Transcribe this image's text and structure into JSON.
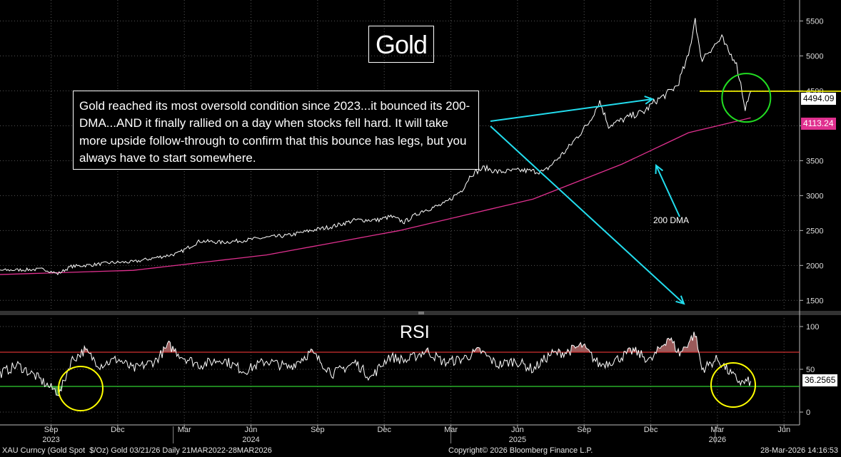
{
  "chart_data": [
    {
      "type": "line",
      "title": "Gold",
      "ylim": [
        1350,
        5800
      ],
      "y_ticks": [
        1500,
        2000,
        2500,
        3000,
        3500,
        4000,
        4500,
        5000,
        5500
      ],
      "x_range": [
        "Jul 2023",
        "Jun 2026"
      ],
      "series": [
        {
          "name": "XAU Curncy (Gold Spot $/Oz)",
          "color": "#ffffff",
          "anchors": [
            [
              0,
              1930
            ],
            [
              2,
              1945
            ],
            [
              2.6,
              1880
            ],
            [
              3.2,
              1985
            ],
            [
              4.2,
              2010
            ],
            [
              5,
              2040
            ],
            [
              6,
              2050
            ],
            [
              8,
              2170
            ],
            [
              9,
              2350
            ],
            [
              10,
              2330
            ],
            [
              11,
              2360
            ],
            [
              12,
              2400
            ],
            [
              13,
              2430
            ],
            [
              14,
              2500
            ],
            [
              15,
              2560
            ],
            [
              16,
              2650
            ],
            [
              17,
              2650
            ],
            [
              17.6,
              2700
            ],
            [
              18.2,
              2620
            ],
            [
              19,
              2780
            ],
            [
              20,
              2880
            ],
            [
              20.8,
              3080
            ],
            [
              21.2,
              3300
            ],
            [
              21.8,
              3400
            ],
            [
              22.4,
              3340
            ],
            [
              23.5,
              3360
            ],
            [
              24.5,
              3340
            ],
            [
              25.5,
              3650
            ],
            [
              26.5,
              4040
            ],
            [
              27,
              4350
            ],
            [
              27.4,
              4000
            ],
            [
              28,
              4080
            ],
            [
              28.5,
              4150
            ],
            [
              29,
              4200
            ],
            [
              29.5,
              4350
            ],
            [
              30,
              4450
            ],
            [
              30.5,
              4580
            ],
            [
              31,
              5000
            ],
            [
              31.3,
              5550
            ],
            [
              31.55,
              4950
            ],
            [
              32,
              5100
            ],
            [
              32.5,
              5250
            ],
            [
              32.8,
              5050
            ],
            [
              33.1,
              4950
            ],
            [
              33.35,
              4600
            ],
            [
              33.55,
              4250
            ],
            [
              33.8,
              4494
            ]
          ],
          "last_value": "4494.09"
        },
        {
          "name": "200 DMA",
          "color": "#e0308f",
          "anchors": [
            [
              0,
              1870
            ],
            [
              6,
              1930
            ],
            [
              12,
              2150
            ],
            [
              18,
              2500
            ],
            [
              24,
              2950
            ],
            [
              28,
              3450
            ],
            [
              31,
              3900
            ],
            [
              33.8,
              4113
            ]
          ],
          "last_value": "4113.24"
        }
      ],
      "horizontal_line": {
        "value": 4494.09,
        "color": "#ffff00"
      },
      "annotations": {
        "note": "Gold reached its most oversold condition since 2023...it bounced its 200-DMA...AND it finally rallied on a day when stocks fell hard. It will take more upside follow-through to confirm that this bounce has legs, but you always have to start somewhere.",
        "dma_label": "200 DMA"
      }
    },
    {
      "type": "line",
      "title": "RSI",
      "ylim": [
        -10,
        110
      ],
      "y_ticks": [
        0,
        50,
        100
      ],
      "overbought": 70,
      "oversold": 30,
      "series": [
        {
          "name": "RSI",
          "color": "#ffffff",
          "anchors": [
            [
              0,
              45
            ],
            [
              0.8,
              55
            ],
            [
              1.6,
              42
            ],
            [
              2.3,
              28
            ],
            [
              2.7,
              22
            ],
            [
              3.2,
              60
            ],
            [
              3.8,
              72
            ],
            [
              4.5,
              55
            ],
            [
              5.3,
              62
            ],
            [
              6,
              50
            ],
            [
              7,
              60
            ],
            [
              7.6,
              78
            ],
            [
              8.2,
              65
            ],
            [
              9,
              55
            ],
            [
              10,
              62
            ],
            [
              11,
              48
            ],
            [
              12,
              60
            ],
            [
              13,
              52
            ],
            [
              14,
              70
            ],
            [
              15,
              45
            ],
            [
              16,
              58
            ],
            [
              16.7,
              40
            ],
            [
              17.5,
              65
            ],
            [
              18.3,
              60
            ],
            [
              19.2,
              72
            ],
            [
              20,
              58
            ],
            [
              20.8,
              62
            ],
            [
              21.6,
              72
            ],
            [
              22.4,
              55
            ],
            [
              23.2,
              60
            ],
            [
              24,
              50
            ],
            [
              24.8,
              68
            ],
            [
              25.5,
              70
            ],
            [
              26.2,
              78
            ],
            [
              27,
              55
            ],
            [
              27.8,
              62
            ],
            [
              28.5,
              72
            ],
            [
              29.3,
              60
            ],
            [
              30.1,
              88
            ],
            [
              30.6,
              68
            ],
            [
              31.3,
              92
            ],
            [
              31.6,
              50
            ],
            [
              32.3,
              62
            ],
            [
              33,
              42
            ],
            [
              33.4,
              34
            ],
            [
              33.8,
              36.26
            ]
          ],
          "last_value": "36.2565"
        }
      ]
    }
  ],
  "x_axis": {
    "months": [
      {
        "label": "Sep",
        "pos": 2.3
      },
      {
        "label": "Dec",
        "pos": 5.3
      },
      {
        "label": "Mar",
        "pos": 8.3
      },
      {
        "label": "Jun",
        "pos": 11.3
      },
      {
        "label": "Sep",
        "pos": 14.3
      },
      {
        "label": "Dec",
        "pos": 17.3
      },
      {
        "label": "Mar",
        "pos": 20.3
      },
      {
        "label": "Jun",
        "pos": 23.3
      },
      {
        "label": "Sep",
        "pos": 26.3
      },
      {
        "label": "Dec",
        "pos": 29.3
      },
      {
        "label": "Mar",
        "pos": 32.3
      },
      {
        "label": "Jun",
        "pos": 35.3
      }
    ],
    "years": [
      {
        "label": "2023",
        "pos": 2.3
      },
      {
        "label": "2024",
        "pos": 11.3
      },
      {
        "label": "2025",
        "pos": 23.3
      },
      {
        "label": "2026",
        "pos": 32.3
      }
    ]
  },
  "footer": {
    "left": "XAU Curncy (Gold Spot  $/Oz) Gold 03/21/26 Daily 21MAR2022-28MAR2026",
    "center": "Copyright© 2026 Bloomberg Finance L.P.",
    "right": "28-Mar-2026 14:16:53"
  }
}
